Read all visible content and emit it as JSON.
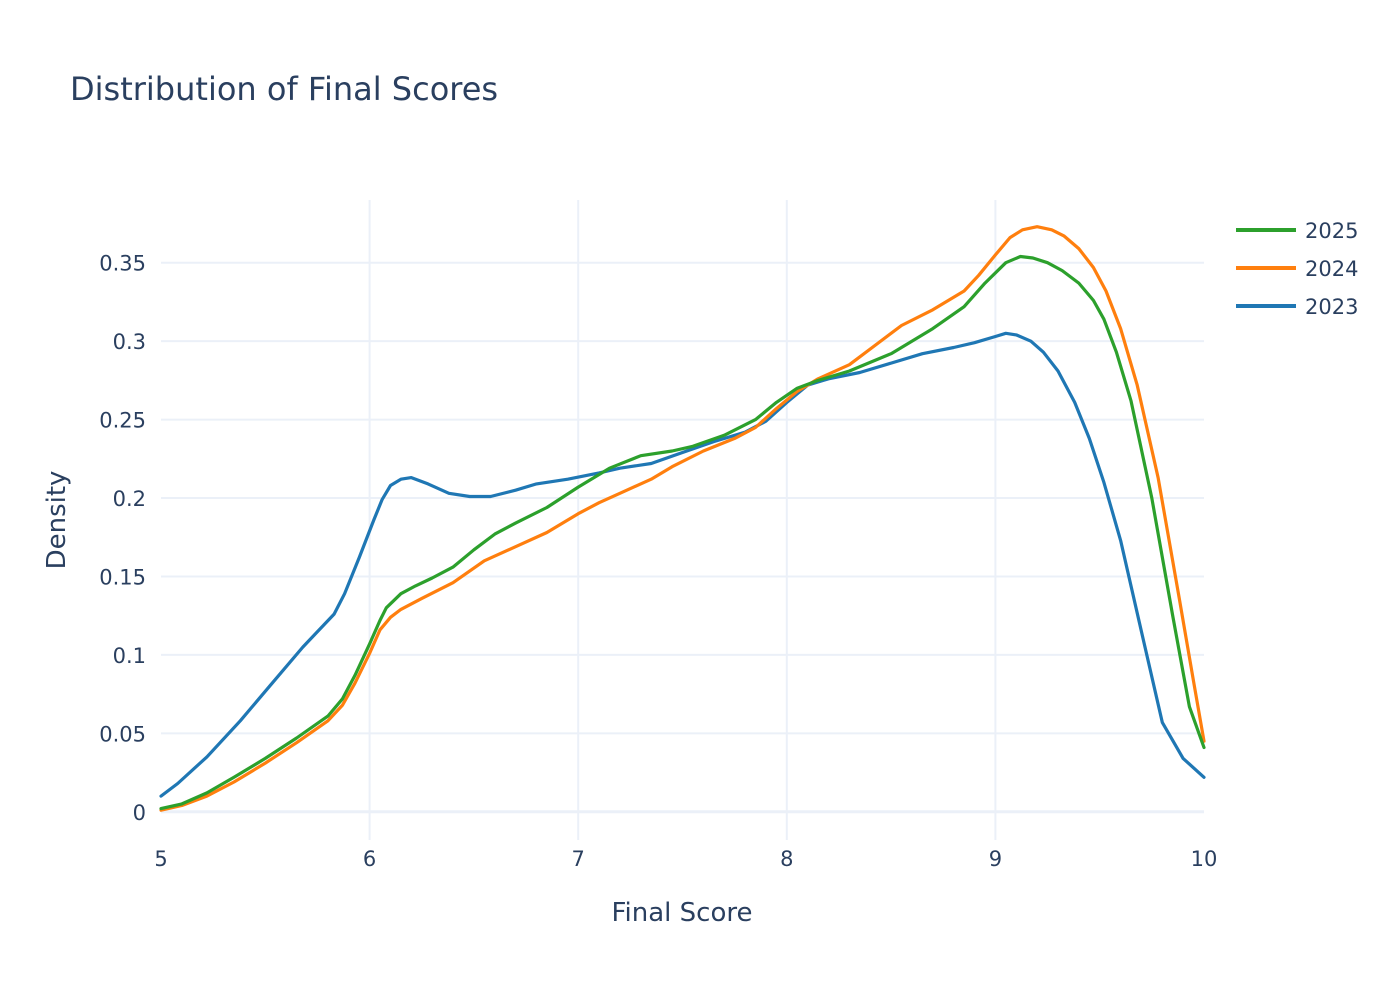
{
  "chart_data": {
    "type": "line",
    "title": "Distribution of Final Scores",
    "xlabel": "Final Score",
    "ylabel": "Density",
    "xlim": [
      5,
      10
    ],
    "ylim": [
      -0.018,
      0.39
    ],
    "x_ticks": [
      5,
      6,
      7,
      8,
      9,
      10
    ],
    "x_tick_labels": [
      "5",
      "6",
      "7",
      "8",
      "9",
      "10"
    ],
    "y_ticks": [
      0,
      0.05,
      0.1,
      0.15,
      0.2,
      0.25,
      0.3,
      0.35
    ],
    "y_tick_labels": [
      "0",
      "0.05",
      "0.1",
      "0.15",
      "0.2",
      "0.25",
      "0.3",
      "0.35"
    ],
    "grid": true,
    "legend_position": "top-right",
    "series": [
      {
        "name": "2025",
        "color": "#2ca02c",
        "points": [
          [
            5.0,
            0.002
          ],
          [
            5.1,
            0.005
          ],
          [
            5.22,
            0.012
          ],
          [
            5.35,
            0.022
          ],
          [
            5.5,
            0.034
          ],
          [
            5.65,
            0.047
          ],
          [
            5.8,
            0.061
          ],
          [
            5.87,
            0.072
          ],
          [
            5.93,
            0.087
          ],
          [
            6.0,
            0.107
          ],
          [
            6.05,
            0.122
          ],
          [
            6.08,
            0.13
          ],
          [
            6.15,
            0.139
          ],
          [
            6.22,
            0.144
          ],
          [
            6.3,
            0.149
          ],
          [
            6.4,
            0.156
          ],
          [
            6.5,
            0.167
          ],
          [
            6.6,
            0.177
          ],
          [
            6.7,
            0.184
          ],
          [
            6.85,
            0.194
          ],
          [
            7.0,
            0.207
          ],
          [
            7.15,
            0.219
          ],
          [
            7.3,
            0.227
          ],
          [
            7.45,
            0.23
          ],
          [
            7.55,
            0.233
          ],
          [
            7.7,
            0.24
          ],
          [
            7.85,
            0.25
          ],
          [
            7.95,
            0.261
          ],
          [
            8.05,
            0.27
          ],
          [
            8.15,
            0.275
          ],
          [
            8.3,
            0.281
          ],
          [
            8.5,
            0.292
          ],
          [
            8.7,
            0.308
          ],
          [
            8.85,
            0.322
          ],
          [
            8.95,
            0.337
          ],
          [
            9.05,
            0.35
          ],
          [
            9.12,
            0.354
          ],
          [
            9.18,
            0.353
          ],
          [
            9.25,
            0.35
          ],
          [
            9.32,
            0.345
          ],
          [
            9.4,
            0.337
          ],
          [
            9.47,
            0.326
          ],
          [
            9.52,
            0.314
          ],
          [
            9.58,
            0.293
          ],
          [
            9.65,
            0.262
          ],
          [
            9.75,
            0.2
          ],
          [
            9.85,
            0.125
          ],
          [
            9.93,
            0.067
          ],
          [
            10.0,
            0.041
          ]
        ]
      },
      {
        "name": "2024",
        "color": "#ff7f0e",
        "points": [
          [
            5.0,
            0.001
          ],
          [
            5.1,
            0.004
          ],
          [
            5.22,
            0.01
          ],
          [
            5.35,
            0.019
          ],
          [
            5.5,
            0.031
          ],
          [
            5.65,
            0.044
          ],
          [
            5.8,
            0.058
          ],
          [
            5.87,
            0.068
          ],
          [
            5.93,
            0.082
          ],
          [
            6.0,
            0.101
          ],
          [
            6.05,
            0.116
          ],
          [
            6.1,
            0.124
          ],
          [
            6.15,
            0.129
          ],
          [
            6.25,
            0.136
          ],
          [
            6.4,
            0.146
          ],
          [
            6.55,
            0.16
          ],
          [
            6.7,
            0.169
          ],
          [
            6.85,
            0.178
          ],
          [
            7.0,
            0.19
          ],
          [
            7.1,
            0.197
          ],
          [
            7.2,
            0.203
          ],
          [
            7.35,
            0.212
          ],
          [
            7.45,
            0.22
          ],
          [
            7.6,
            0.23
          ],
          [
            7.75,
            0.238
          ],
          [
            7.85,
            0.245
          ],
          [
            7.95,
            0.257
          ],
          [
            8.05,
            0.268
          ],
          [
            8.15,
            0.276
          ],
          [
            8.3,
            0.285
          ],
          [
            8.42,
            0.297
          ],
          [
            8.55,
            0.31
          ],
          [
            8.7,
            0.32
          ],
          [
            8.85,
            0.332
          ],
          [
            8.92,
            0.342
          ],
          [
            9.0,
            0.355
          ],
          [
            9.07,
            0.366
          ],
          [
            9.13,
            0.371
          ],
          [
            9.2,
            0.373
          ],
          [
            9.27,
            0.371
          ],
          [
            9.33,
            0.367
          ],
          [
            9.4,
            0.359
          ],
          [
            9.47,
            0.347
          ],
          [
            9.53,
            0.332
          ],
          [
            9.6,
            0.308
          ],
          [
            9.68,
            0.272
          ],
          [
            9.78,
            0.213
          ],
          [
            9.88,
            0.137
          ],
          [
            9.95,
            0.083
          ],
          [
            10.0,
            0.045
          ]
        ]
      },
      {
        "name": "2023",
        "color": "#1f77b4",
        "points": [
          [
            5.0,
            0.01
          ],
          [
            5.08,
            0.018
          ],
          [
            5.22,
            0.035
          ],
          [
            5.38,
            0.058
          ],
          [
            5.52,
            0.08
          ],
          [
            5.68,
            0.105
          ],
          [
            5.83,
            0.126
          ],
          [
            5.88,
            0.139
          ],
          [
            5.95,
            0.162
          ],
          [
            6.02,
            0.186
          ],
          [
            6.06,
            0.199
          ],
          [
            6.1,
            0.208
          ],
          [
            6.15,
            0.212
          ],
          [
            6.2,
            0.213
          ],
          [
            6.28,
            0.209
          ],
          [
            6.38,
            0.203
          ],
          [
            6.48,
            0.201
          ],
          [
            6.58,
            0.201
          ],
          [
            6.7,
            0.205
          ],
          [
            6.8,
            0.209
          ],
          [
            6.95,
            0.212
          ],
          [
            7.1,
            0.216
          ],
          [
            7.2,
            0.219
          ],
          [
            7.35,
            0.222
          ],
          [
            7.5,
            0.229
          ],
          [
            7.65,
            0.236
          ],
          [
            7.8,
            0.242
          ],
          [
            7.9,
            0.249
          ],
          [
            8.0,
            0.261
          ],
          [
            8.1,
            0.272
          ],
          [
            8.2,
            0.276
          ],
          [
            8.35,
            0.28
          ],
          [
            8.5,
            0.286
          ],
          [
            8.65,
            0.292
          ],
          [
            8.8,
            0.296
          ],
          [
            8.9,
            0.299
          ],
          [
            9.0,
            0.303
          ],
          [
            9.05,
            0.305
          ],
          [
            9.1,
            0.304
          ],
          [
            9.17,
            0.3
          ],
          [
            9.23,
            0.293
          ],
          [
            9.3,
            0.281
          ],
          [
            9.38,
            0.261
          ],
          [
            9.45,
            0.238
          ],
          [
            9.52,
            0.21
          ],
          [
            9.6,
            0.173
          ],
          [
            9.7,
            0.115
          ],
          [
            9.8,
            0.057
          ],
          [
            9.9,
            0.034
          ],
          [
            10.0,
            0.022
          ]
        ]
      }
    ]
  }
}
